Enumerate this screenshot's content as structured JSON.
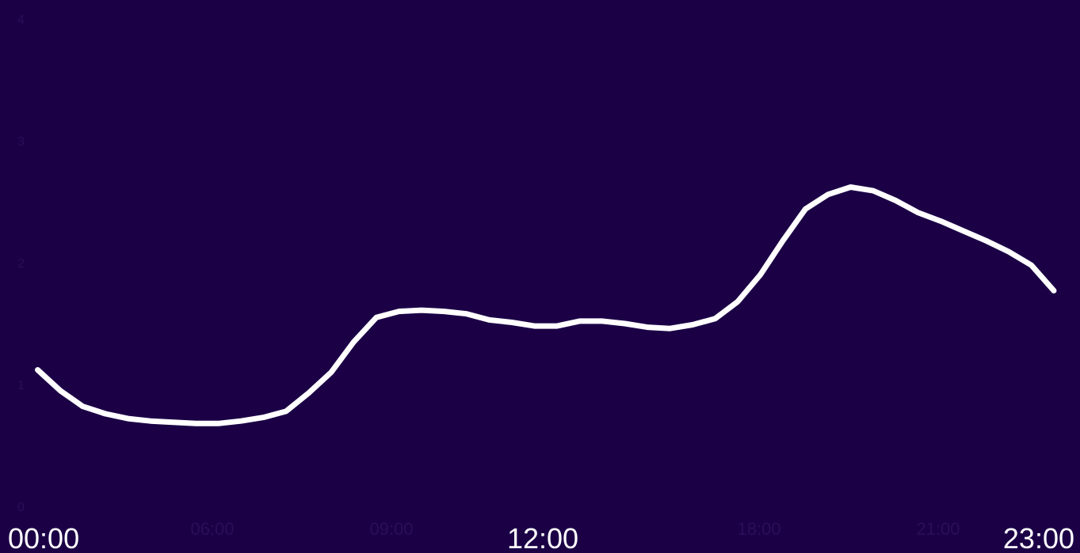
{
  "chart_data": {
    "type": "line",
    "x_axis": {
      "labels": [
        "00:00",
        "12:00",
        "23:00"
      ],
      "faint_ticks": [
        "06:00",
        "09:00",
        "18:00",
        "21:00"
      ]
    },
    "y_axis": {
      "faint_ticks": [
        "0",
        "1",
        "2",
        "3",
        "4"
      ],
      "ylim": [
        0,
        4
      ]
    },
    "series": [
      {
        "x": [
          0.5,
          1,
          1.5,
          2,
          2.5,
          3,
          3.5,
          4,
          4.5,
          5,
          5.5,
          6,
          6.5,
          7,
          7.5,
          8,
          8.5,
          9,
          9.5,
          10,
          10.5,
          11,
          11.5,
          12,
          12.5,
          13,
          13.5,
          14,
          14.5,
          15,
          15.5,
          16,
          16.5,
          17,
          17.5,
          18,
          18.5,
          19,
          19.5,
          20,
          20.5,
          21,
          21.5,
          22,
          22.5,
          23
        ],
        "values": [
          1.12,
          0.95,
          0.82,
          0.76,
          0.72,
          0.7,
          0.69,
          0.68,
          0.68,
          0.7,
          0.73,
          0.78,
          0.93,
          1.1,
          1.35,
          1.55,
          1.6,
          1.61,
          1.6,
          1.58,
          1.53,
          1.51,
          1.48,
          1.48,
          1.52,
          1.52,
          1.5,
          1.47,
          1.46,
          1.49,
          1.54,
          1.68,
          1.9,
          2.18,
          2.44,
          2.56,
          2.62,
          2.59,
          2.51,
          2.41,
          2.34,
          2.26,
          2.18,
          2.09,
          1.98,
          1.77
        ]
      }
    ],
    "line_color": "#ffffff",
    "background_color": "#1b0046",
    "grid": false,
    "legend": "none"
  }
}
